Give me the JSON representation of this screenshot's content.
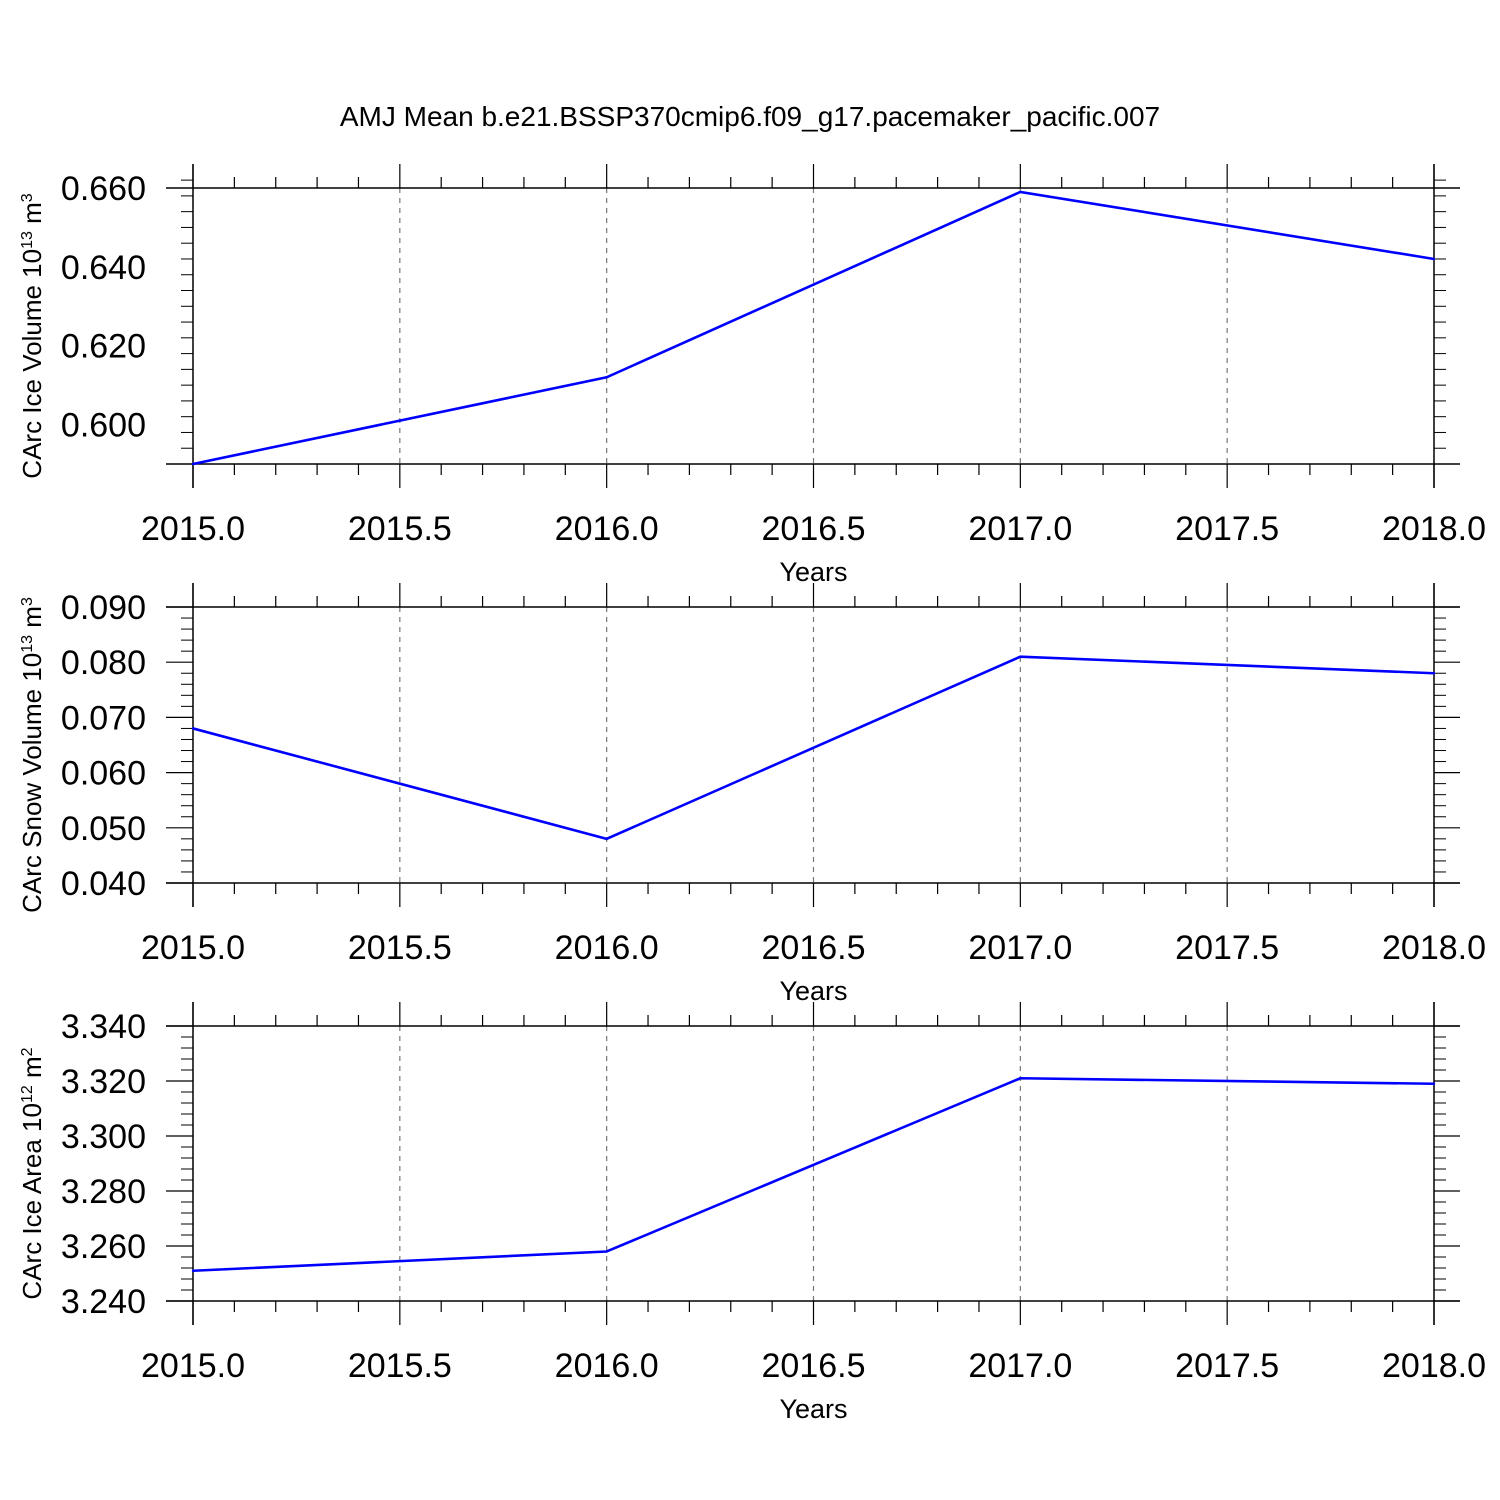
{
  "title": "AMJ Mean b.e21.BSSP370cmip6.f09_g17.pacemaker_pacific.007",
  "colors": {
    "series": "#0000ff",
    "axes": "#000000",
    "grid": "#777777",
    "background": "#ffffff"
  },
  "chart_data": [
    {
      "type": "line",
      "xlabel": "Years",
      "ylabel": {
        "text": "CArc Ice Volume 10",
        "exp": "13",
        "unit": " m",
        "unit_exp": "3"
      },
      "x": [
        2015.0,
        2016.0,
        2017.0,
        2018.0
      ],
      "series": [
        {
          "values": [
            0.59,
            0.612,
            0.659,
            0.642
          ]
        }
      ],
      "xlim": [
        2015.0,
        2018.0
      ],
      "ylim": [
        0.59,
        0.66
      ],
      "xticks": [
        "2015.0",
        "2015.5",
        "2016.0",
        "2016.5",
        "2017.0",
        "2017.5",
        "2018.0"
      ],
      "yticks": [
        "0.600",
        "0.620",
        "0.640",
        "0.660"
      ],
      "grid": "vertical dashed at major x ticks"
    },
    {
      "type": "line",
      "xlabel": "Years",
      "ylabel": {
        "text": "CArc Snow Volume 10",
        "exp": "13",
        "unit": " m",
        "unit_exp": "3"
      },
      "x": [
        2015.0,
        2016.0,
        2017.0,
        2018.0
      ],
      "series": [
        {
          "values": [
            0.068,
            0.048,
            0.081,
            0.078
          ]
        }
      ],
      "xlim": [
        2015.0,
        2018.0
      ],
      "ylim": [
        0.04,
        0.09
      ],
      "xticks": [
        "2015.0",
        "2015.5",
        "2016.0",
        "2016.5",
        "2017.0",
        "2017.5",
        "2018.0"
      ],
      "yticks": [
        "0.040",
        "0.050",
        "0.060",
        "0.070",
        "0.080",
        "0.090"
      ],
      "grid": "vertical dashed at major x ticks"
    },
    {
      "type": "line",
      "xlabel": "Years",
      "ylabel": {
        "text": "CArc Ice Area 10",
        "exp": "12",
        "unit": " m",
        "unit_exp": "2"
      },
      "x": [
        2015.0,
        2016.0,
        2017.0,
        2018.0
      ],
      "series": [
        {
          "values": [
            3.251,
            3.258,
            3.321,
            3.319
          ]
        }
      ],
      "xlim": [
        2015.0,
        2018.0
      ],
      "ylim": [
        3.24,
        3.34
      ],
      "xticks": [
        "2015.0",
        "2015.5",
        "2016.0",
        "2016.5",
        "2017.0",
        "2017.5",
        "2018.0"
      ],
      "yticks": [
        "3.240",
        "3.260",
        "3.280",
        "3.300",
        "3.320",
        "3.340"
      ],
      "grid": "vertical dashed at major x ticks"
    }
  ]
}
